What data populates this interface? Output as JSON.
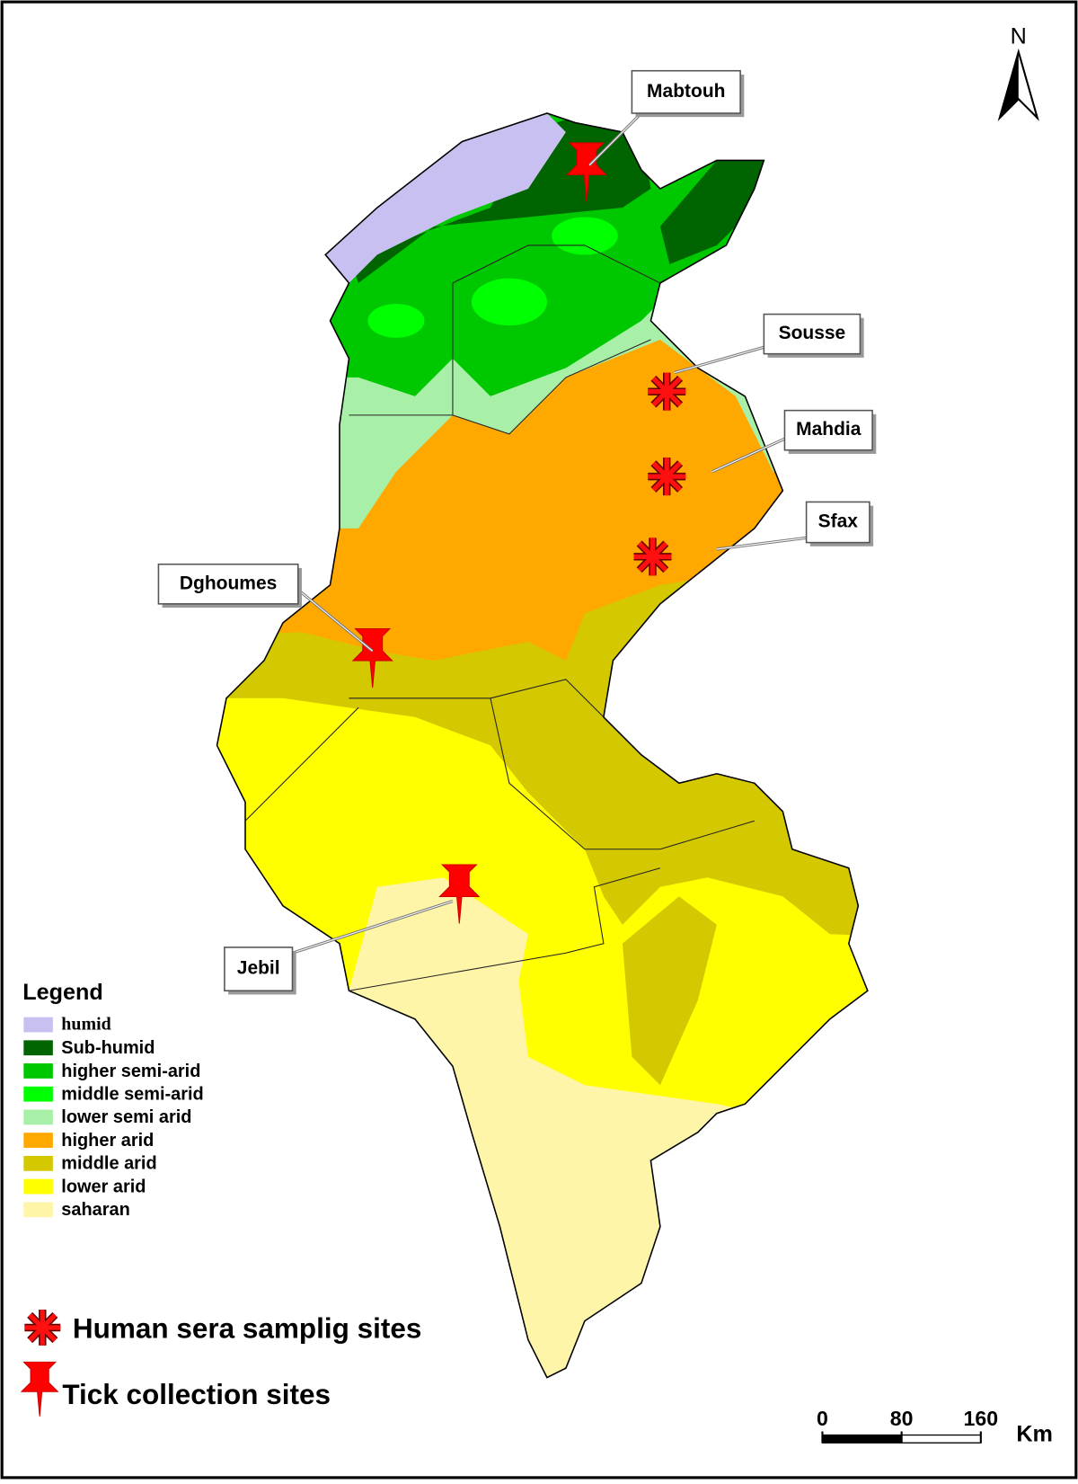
{
  "north": "N",
  "human_sites": [
    "Sousse",
    "Mahdia",
    "Sfax"
  ],
  "tick_sites": [
    "Mabtouh",
    "Dghoumes",
    "Jebil"
  ],
  "legend": {
    "title": "Legend",
    "items": [
      {
        "label": "humid",
        "color": "#c8c0f0"
      },
      {
        "label": "Sub-humid",
        "color": "#006400"
      },
      {
        "label": "higher semi-arid",
        "color": "#00c800"
      },
      {
        "label": " middle semi-arid",
        "color": "#00ff00"
      },
      {
        "label": "lower semi arid",
        "color": "#a8f0a8"
      },
      {
        "label": "higher arid",
        "color": "#ffa800"
      },
      {
        "label": "middle arid",
        "color": "#d4c800"
      },
      {
        "label": "lower arid",
        "color": "#ffff00"
      },
      {
        "label": "saharan",
        "color": "#fff5a8"
      }
    ]
  },
  "markers": {
    "human": "Human sera samplig sites",
    "tick": "Tick collection sites"
  },
  "scale": {
    "ticks": [
      0,
      80,
      160
    ],
    "unit": "Km"
  }
}
